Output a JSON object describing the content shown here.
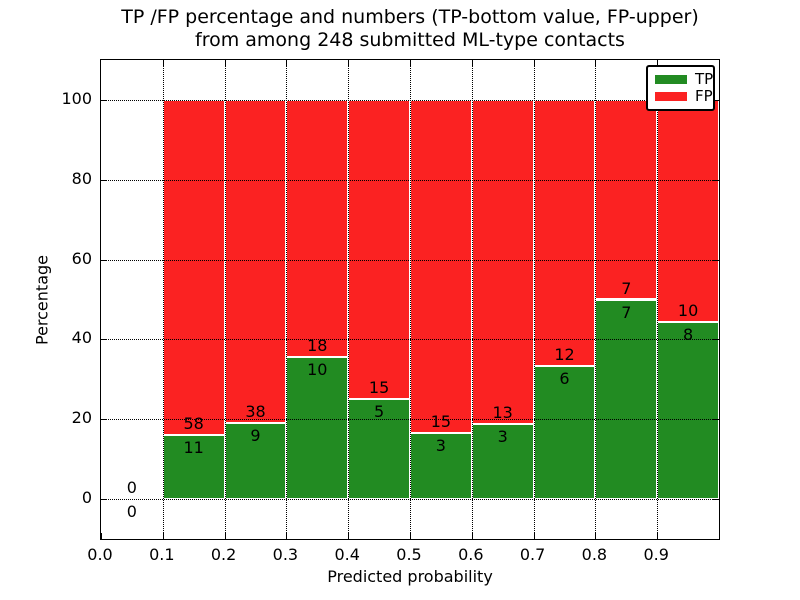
{
  "figure": {
    "title_line1": "TP /FP percentage and numbers (TP-bottom value, FP-upper)",
    "title_line2": "from among 248 submitted ML-type contacts",
    "xlabel": "Predicted probability",
    "ylabel": "Percentage"
  },
  "legend": {
    "items": [
      {
        "label": "TP",
        "color": "#228B22"
      },
      {
        "label": "FP",
        "color": "#FB2222"
      }
    ]
  },
  "chart_data": {
    "type": "bar",
    "stacked": true,
    "normalized": "each bin bar totals 100%",
    "title": "TP /FP percentage and numbers (TP-bottom value, FP-upper) from among 248 submitted ML-type contacts",
    "xlabel": "Predicted probability",
    "ylabel": "Percentage",
    "total_contacts": 248,
    "xlim": [
      0.0,
      1.0
    ],
    "ylim": [
      -10,
      110
    ],
    "x_ticks": [
      "0.0",
      "0.1",
      "0.2",
      "0.3",
      "0.4",
      "0.5",
      "0.6",
      "0.7",
      "0.8",
      "0.9"
    ],
    "y_ticks": [
      0,
      20,
      40,
      60,
      80,
      100
    ],
    "grid": "dotted",
    "legend_position": "upper right",
    "colors": {
      "tp": "#228B22",
      "fp": "#FB2222"
    },
    "bins": [
      {
        "x_start": 0.0,
        "x_end": 0.1,
        "tp": 0,
        "fp": 0
      },
      {
        "x_start": 0.1,
        "x_end": 0.2,
        "tp": 11,
        "fp": 58
      },
      {
        "x_start": 0.2,
        "x_end": 0.3,
        "tp": 9,
        "fp": 38
      },
      {
        "x_start": 0.3,
        "x_end": 0.4,
        "tp": 10,
        "fp": 18
      },
      {
        "x_start": 0.4,
        "x_end": 0.5,
        "tp": 5,
        "fp": 15
      },
      {
        "x_start": 0.5,
        "x_end": 0.6,
        "tp": 3,
        "fp": 15
      },
      {
        "x_start": 0.6,
        "x_end": 0.7,
        "tp": 3,
        "fp": 13
      },
      {
        "x_start": 0.7,
        "x_end": 0.8,
        "tp": 6,
        "fp": 12
      },
      {
        "x_start": 0.8,
        "x_end": 0.9,
        "tp": 7,
        "fp": 7
      },
      {
        "x_start": 0.9,
        "x_end": 1.0,
        "tp": 8,
        "fp": 10
      }
    ]
  }
}
